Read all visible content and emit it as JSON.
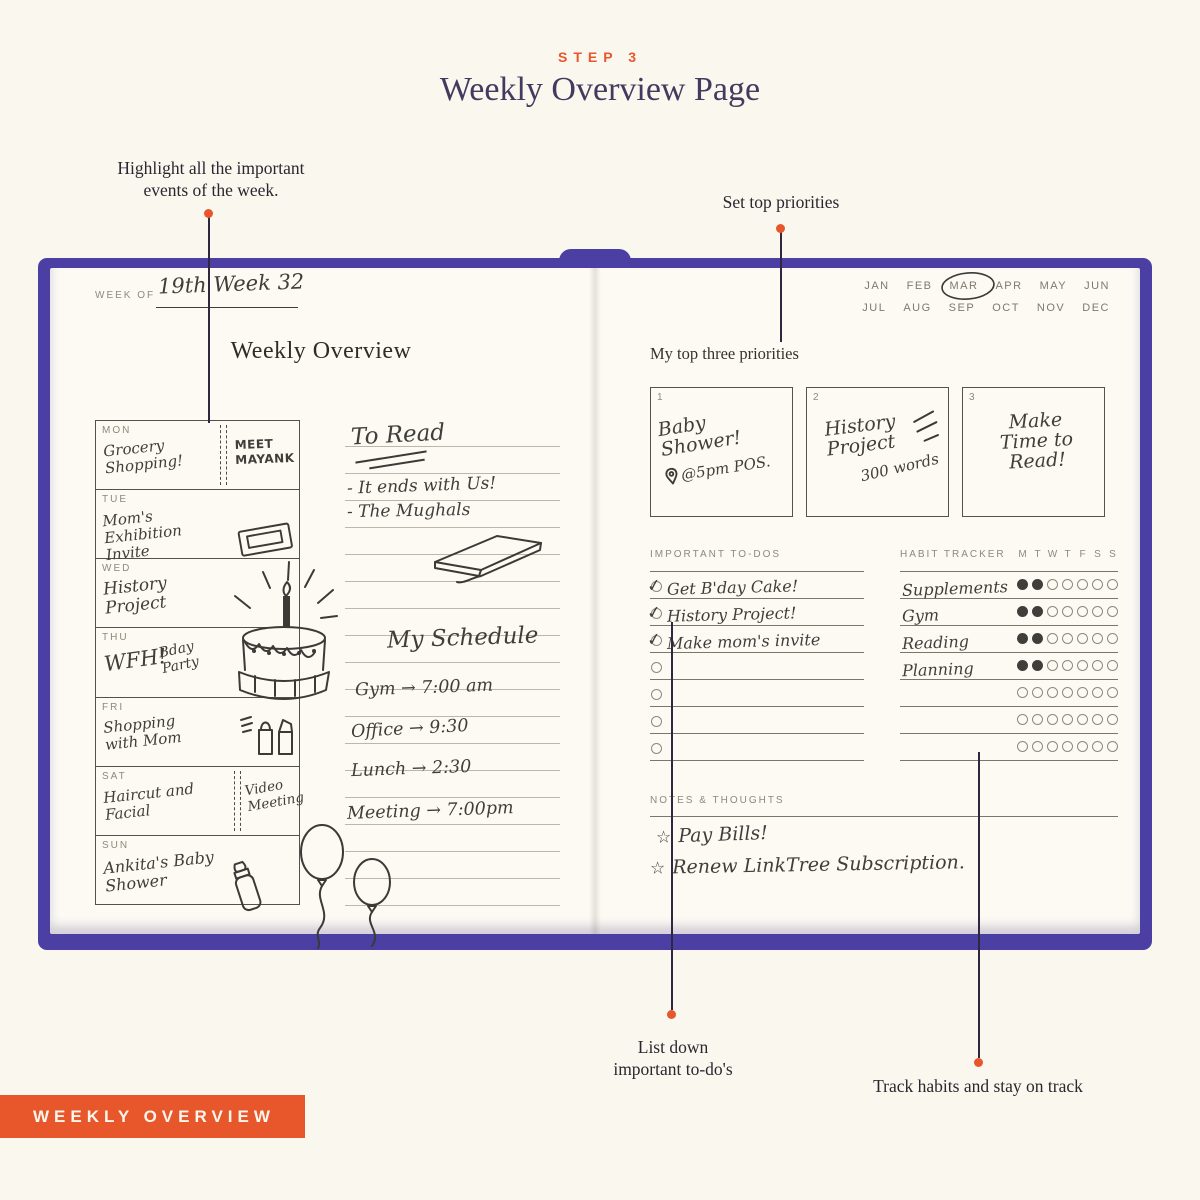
{
  "header": {
    "step_label": "STEP 3",
    "title": "Weekly Overview Page"
  },
  "annotations": {
    "highlight_events": {
      "line1": "Highlight all the important",
      "line2": "events of the week."
    },
    "set_priorities": "Set top priorities",
    "list_todos": {
      "line1": "List down",
      "line2": "important to-do's"
    },
    "track_habits": "Track habits and stay on track"
  },
  "left_page": {
    "week_of_label": "WEEK OF",
    "week_of_value": "19th Week 32",
    "page_title": "Weekly Overview",
    "days": [
      {
        "label": "MON",
        "entry": "Grocery Shopping!",
        "entry2": "MEET MAYANK"
      },
      {
        "label": "TUE",
        "entry": "Mom's Exhibition Invite"
      },
      {
        "label": "WED",
        "entry": "History Project"
      },
      {
        "label": "THU",
        "entry": "WFH!",
        "entry2": "Bday Party"
      },
      {
        "label": "FRI",
        "entry": "Shopping with Mom"
      },
      {
        "label": "SAT",
        "entry": "Haircut and Facial",
        "entry2": "Video Meeting"
      },
      {
        "label": "SUN",
        "entry": "Ankita's Baby Shower"
      }
    ],
    "to_read": {
      "title": "To Read",
      "items": [
        "- It ends with Us!",
        "- The Mughals"
      ]
    },
    "schedule": {
      "title": "My Schedule",
      "items": [
        "Gym → 7:00 am",
        "Office → 9:30",
        "Lunch → 2:30",
        "Meeting → 7:00pm"
      ]
    }
  },
  "right_page": {
    "months_row1": [
      "JAN",
      "FEB",
      "MAR",
      "APR",
      "MAY",
      "JUN"
    ],
    "months_row2": [
      "JUL",
      "AUG",
      "SEP",
      "OCT",
      "NOV",
      "DEC"
    ],
    "circled_month": "MAR",
    "priorities_label": "My top three priorities",
    "priorities": [
      {
        "num": "1",
        "line1": "Baby Shower!",
        "line2": "@5pm POS."
      },
      {
        "num": "2",
        "line1": "History Project",
        "line2": "300 words"
      },
      {
        "num": "3",
        "line1": "Make Time to Read!",
        "line2": ""
      }
    ],
    "todos_label": "IMPORTANT TO-DOS",
    "todo_check": "✓",
    "todos": [
      "Get B'day Cake!",
      "History Project!",
      "Make mom's invite",
      "",
      "",
      "",
      ""
    ],
    "habit_tracker_label": "HABIT TRACKER",
    "habit_day_letters": [
      "M",
      "T",
      "W",
      "T",
      "F",
      "S",
      "S"
    ],
    "habits": [
      {
        "name": "Supplements",
        "filled": 2
      },
      {
        "name": "Gym",
        "filled": 2
      },
      {
        "name": "Reading",
        "filled": 2
      },
      {
        "name": "Planning",
        "filled": 2
      },
      {
        "name": "",
        "filled": 0
      },
      {
        "name": "",
        "filled": 0
      },
      {
        "name": "",
        "filled": 0
      }
    ],
    "notes_label": "NOTES & THOUGHTS",
    "note_star": "☆",
    "notes": [
      "Pay Bills!",
      "Renew LinkTree Subscription."
    ]
  },
  "footer": {
    "banner_label": "WEEKLY OVERVIEW"
  },
  "colors": {
    "accent_orange": "#E8572C",
    "cover_purple": "#4B3FA3",
    "heading_purple": "#46395F"
  }
}
